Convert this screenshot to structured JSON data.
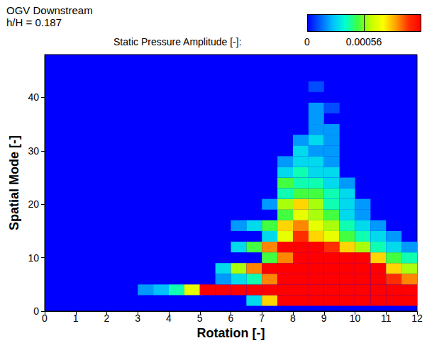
{
  "chart_data": {
    "type": "heatmap",
    "title": "OGV Downstream",
    "subtitle": "h/H = 0.187",
    "x_label": "Rotation [-]",
    "y_label": "Spatial Mode [-]",
    "xlim": [
      0,
      12
    ],
    "xticks": [
      0,
      1,
      2,
      3,
      4,
      5,
      6,
      7,
      8,
      9,
      10,
      11,
      12
    ],
    "ylim": [
      0,
      48
    ],
    "yticks": [
      0,
      10,
      20,
      30,
      40
    ],
    "colorbar_label": "Static Pressure Amplitude [-]:",
    "color_range": [
      0,
      0.00112
    ],
    "color_ticks": [
      0,
      0.00056
    ],
    "cells": [
      [
        6.75,
        2,
        0.0003
      ],
      [
        7.25,
        2,
        0.0008
      ],
      [
        7.75,
        2,
        0.00112
      ],
      [
        8.25,
        2,
        0.00112
      ],
      [
        8.75,
        2,
        0.00112
      ],
      [
        9.25,
        2,
        0.00112
      ],
      [
        9.75,
        2,
        0.00112
      ],
      [
        10.25,
        2,
        0.00112
      ],
      [
        10.75,
        2,
        0.00112
      ],
      [
        11.25,
        2,
        0.00112
      ],
      [
        11.75,
        2,
        0.00112
      ],
      [
        3.25,
        4,
        0.0002
      ],
      [
        3.75,
        4,
        0.00025
      ],
      [
        4.25,
        4,
        0.0004
      ],
      [
        4.75,
        4,
        0.0007
      ],
      [
        5.25,
        4,
        0.00112
      ],
      [
        5.75,
        4,
        0.00112
      ],
      [
        6.25,
        4,
        0.00112
      ],
      [
        6.75,
        4,
        0.00112
      ],
      [
        7.25,
        4,
        0.00112
      ],
      [
        7.75,
        4,
        0.00112
      ],
      [
        8.25,
        4,
        0.00112
      ],
      [
        8.75,
        4,
        0.00112
      ],
      [
        9.25,
        4,
        0.00112
      ],
      [
        9.75,
        4,
        0.00112
      ],
      [
        10.25,
        4,
        0.00112
      ],
      [
        10.75,
        4,
        0.00112
      ],
      [
        11.25,
        4,
        0.00112
      ],
      [
        11.75,
        4,
        0.00112
      ],
      [
        5.75,
        6,
        0.0002
      ],
      [
        6.25,
        6,
        0.0003
      ],
      [
        6.75,
        6,
        0.0004
      ],
      [
        7.25,
        6,
        0.0009
      ],
      [
        7.75,
        6,
        0.00112
      ],
      [
        8.25,
        6,
        0.00112
      ],
      [
        8.75,
        6,
        0.00112
      ],
      [
        9.25,
        6,
        0.00112
      ],
      [
        9.75,
        6,
        0.00112
      ],
      [
        10.25,
        6,
        0.00112
      ],
      [
        10.75,
        6,
        0.00112
      ],
      [
        11.25,
        6,
        0.001
      ],
      [
        11.75,
        6,
        0.0009
      ],
      [
        5.75,
        8,
        0.0003
      ],
      [
        6.25,
        8,
        0.0006
      ],
      [
        6.75,
        8,
        0.0009
      ],
      [
        7.25,
        8,
        0.00112
      ],
      [
        7.75,
        8,
        0.00112
      ],
      [
        8.25,
        8,
        0.00112
      ],
      [
        8.75,
        8,
        0.00112
      ],
      [
        9.25,
        8,
        0.00112
      ],
      [
        9.75,
        8,
        0.00112
      ],
      [
        10.25,
        8,
        0.00112
      ],
      [
        10.75,
        8,
        0.00112
      ],
      [
        11.25,
        8,
        0.0008
      ],
      [
        11.75,
        8,
        0.0006
      ],
      [
        7.25,
        10,
        0.0005
      ],
      [
        7.75,
        10,
        0.0009
      ],
      [
        8.25,
        10,
        0.00112
      ],
      [
        8.75,
        10,
        0.00112
      ],
      [
        9.25,
        10,
        0.00112
      ],
      [
        9.75,
        10,
        0.00112
      ],
      [
        10.25,
        10,
        0.00112
      ],
      [
        10.75,
        10,
        0.0008
      ],
      [
        11.25,
        10,
        0.0005
      ],
      [
        11.75,
        10,
        0.0004
      ],
      [
        6.25,
        12,
        0.0003
      ],
      [
        6.75,
        12,
        0.0005
      ],
      [
        7.25,
        12,
        0.0009
      ],
      [
        7.75,
        12,
        0.00112
      ],
      [
        8.25,
        12,
        0.00112
      ],
      [
        8.75,
        12,
        0.00112
      ],
      [
        9.25,
        12,
        0.001
      ],
      [
        9.75,
        12,
        0.0008
      ],
      [
        10.25,
        12,
        0.0006
      ],
      [
        10.75,
        12,
        0.0004
      ],
      [
        11.25,
        12,
        0.0003
      ],
      [
        11.75,
        12,
        0.0002
      ],
      [
        7.25,
        14,
        0.0003
      ],
      [
        7.75,
        14,
        0.0007
      ],
      [
        8.25,
        14,
        0.001
      ],
      [
        8.75,
        14,
        0.0008
      ],
      [
        9.25,
        14,
        0.0007
      ],
      [
        9.75,
        14,
        0.0005
      ],
      [
        10.25,
        14,
        0.0004
      ],
      [
        10.75,
        14,
        0.0003
      ],
      [
        11.25,
        14,
        0.0002
      ],
      [
        6.25,
        16,
        0.0002
      ],
      [
        6.75,
        16,
        0.0003
      ],
      [
        7.25,
        16,
        0.0005
      ],
      [
        7.75,
        16,
        0.0008
      ],
      [
        8.25,
        16,
        0.0009
      ],
      [
        8.75,
        16,
        0.0007
      ],
      [
        9.25,
        16,
        0.0006
      ],
      [
        9.75,
        16,
        0.0004
      ],
      [
        10.25,
        16,
        0.0003
      ],
      [
        10.75,
        16,
        0.0002
      ],
      [
        7.75,
        18,
        0.0005
      ],
      [
        8.25,
        18,
        0.0007
      ],
      [
        8.75,
        18,
        0.0006
      ],
      [
        9.25,
        18,
        0.0005
      ],
      [
        9.75,
        18,
        0.0003
      ],
      [
        10.25,
        18,
        0.0002
      ],
      [
        7.25,
        20,
        0.0002
      ],
      [
        7.75,
        20,
        0.0006
      ],
      [
        8.25,
        20,
        0.0008
      ],
      [
        8.75,
        20,
        0.0006
      ],
      [
        9.25,
        20,
        0.0004
      ],
      [
        9.75,
        20,
        0.0003
      ],
      [
        10.25,
        20,
        0.0002
      ],
      [
        7.75,
        22,
        0.0004
      ],
      [
        8.25,
        22,
        0.0005
      ],
      [
        8.75,
        22,
        0.0005
      ],
      [
        9.25,
        22,
        0.0004
      ],
      [
        9.75,
        22,
        0.0003
      ],
      [
        7.75,
        24,
        0.0005
      ],
      [
        8.25,
        24,
        0.0004
      ],
      [
        8.75,
        24,
        0.0004
      ],
      [
        9.25,
        24,
        0.0003
      ],
      [
        9.75,
        24,
        0.0002
      ],
      [
        7.75,
        26,
        0.0003
      ],
      [
        8.25,
        26,
        0.0004
      ],
      [
        8.75,
        26,
        0.0003
      ],
      [
        9.25,
        26,
        0.0003
      ],
      [
        7.75,
        28,
        0.0002
      ],
      [
        8.25,
        28,
        0.0003
      ],
      [
        8.75,
        28,
        0.0003
      ],
      [
        9.25,
        28,
        0.0002
      ],
      [
        8.25,
        30,
        0.0003
      ],
      [
        8.75,
        30,
        0.0002
      ],
      [
        9.25,
        30,
        0.0002
      ],
      [
        8.25,
        32,
        0.0002
      ],
      [
        8.75,
        32,
        0.0003
      ],
      [
        9.25,
        32,
        0.0002
      ],
      [
        8.75,
        34,
        0.0002
      ],
      [
        9.25,
        34,
        0.0002
      ],
      [
        8.75,
        36,
        0.0002
      ],
      [
        8.75,
        38,
        0.0002
      ],
      [
        9.25,
        38,
        0.0001
      ],
      [
        8.75,
        42,
        0.0001
      ]
    ]
  }
}
